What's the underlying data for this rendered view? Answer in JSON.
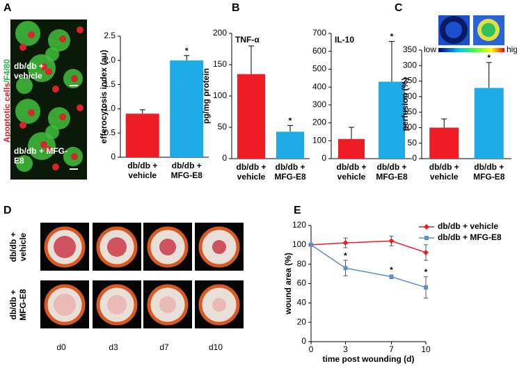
{
  "panels": [
    "A",
    "B",
    "C",
    "D",
    "E"
  ],
  "panel_a": {
    "stain_red": "Apoptotic cells",
    "stain_green": "/F4/80",
    "image_labels": [
      "db/db + vehicle",
      "db/db + MFG-E8"
    ]
  },
  "panel_c": {
    "scale_low": "low",
    "scale_high": "high"
  },
  "panel_d": {
    "rows": [
      "db/db + vehicle",
      "db/db + MFG-E8"
    ],
    "columns": [
      "d0",
      "d3",
      "d7",
      "d10"
    ]
  },
  "chart_data": [
    {
      "type": "bar",
      "ylabel": "efferocytosis index  (au)",
      "categories": [
        "db/db + vehicle",
        "db/db + MFG-E8"
      ],
      "values": [
        0.9,
        2.0
      ],
      "errors": [
        0.08,
        0.1
      ],
      "colors": [
        "#ee1c25",
        "#1eaae7"
      ],
      "ylim": [
        0,
        2.5
      ],
      "yticks": [
        0,
        0.5,
        {
          "value": 1,
          "label": "1.0"
        },
        1.5,
        {
          "value": 2,
          "label": "2.0"
        },
        2.5
      ],
      "annotations": [
        {
          "text": "*",
          "x": "db/db + MFG-E8"
        }
      ]
    },
    {
      "type": "bar",
      "title": "TNF-α",
      "ylabel": "pg/mg protein",
      "categories": [
        "db/db + vehicle",
        "db/db + MFG-E8"
      ],
      "values": [
        135,
        43
      ],
      "errors": [
        45,
        10
      ],
      "colors": [
        "#ee1c25",
        "#1eaae7"
      ],
      "ylim": [
        0,
        200
      ],
      "yticks": [
        0,
        50,
        100,
        150,
        200
      ],
      "annotations": [
        {
          "text": "*",
          "x": "db/db + MFG-E8"
        }
      ]
    },
    {
      "type": "bar",
      "title": "IL-10",
      "categories": [
        "db/db + vehicle",
        "db/db + MFG-E8"
      ],
      "values": [
        110,
        430
      ],
      "errors": [
        65,
        225
      ],
      "colors": [
        "#ee1c25",
        "#1eaae7"
      ],
      "ylim": [
        0,
        700
      ],
      "yticks": [
        0,
        100,
        200,
        300,
        400,
        500,
        600,
        700
      ],
      "annotations": [
        {
          "text": "*",
          "x": "db/db + MFG-E8"
        }
      ]
    },
    {
      "type": "bar",
      "ylabel": "perfusion (%)",
      "categories": [
        "db/db + vehicle",
        "db/db + MFG-E8"
      ],
      "values": [
        100,
        228
      ],
      "errors": [
        28,
        82
      ],
      "colors": [
        "#ee1c25",
        "#1eaae7"
      ],
      "ylim": [
        0,
        350
      ],
      "yticks": [
        0,
        50,
        100,
        150,
        200,
        250,
        300,
        350
      ],
      "annotations": [
        {
          "text": "*",
          "x": "db/db + MFG-E8"
        }
      ]
    },
    {
      "type": "line",
      "xlabel": "time post wounding (d)",
      "ylabel": "wound area  (%)",
      "x": [
        0,
        3,
        7,
        10
      ],
      "xlim": [
        0,
        10
      ],
      "xticks": [
        0,
        3,
        7,
        10
      ],
      "ylim": [
        0,
        120
      ],
      "yticks": [
        0,
        20,
        40,
        60,
        80,
        100,
        120
      ],
      "legend": "upper right",
      "series": [
        {
          "name": "db/db + vehicle",
          "color": "#ee1c25",
          "marker": "diamond",
          "values": [
            100,
            102,
            104,
            92
          ],
          "errors": [
            0,
            5,
            5,
            8
          ]
        },
        {
          "name": "db/db + MFG-E8",
          "color": "#5b8fc9",
          "marker": "square",
          "values": [
            100,
            76,
            67,
            56
          ],
          "errors": [
            0,
            8,
            2,
            11
          ]
        }
      ],
      "annotations": [
        {
          "text": "*",
          "x": 3,
          "series": "db/db + MFG-E8"
        },
        {
          "text": "*",
          "x": 7,
          "series": "db/db + MFG-E8"
        },
        {
          "text": "*",
          "x": 10,
          "series": "db/db + MFG-E8"
        }
      ]
    }
  ]
}
